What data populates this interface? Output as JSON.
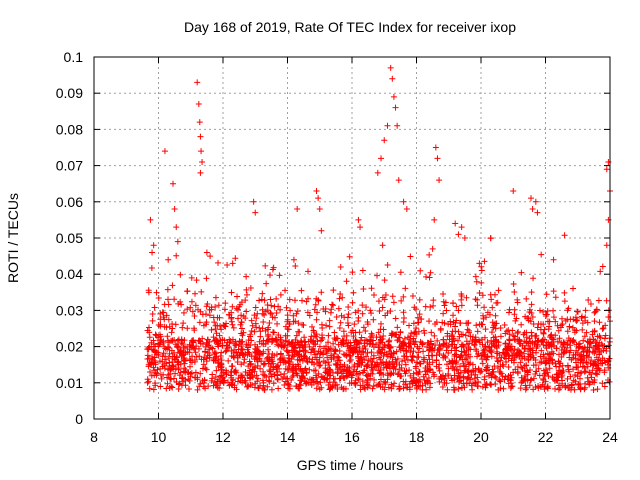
{
  "chart_data": {
    "type": "scatter",
    "title": "Day 168 of 2019, Rate Of TEC Index for receiver ixop",
    "xlabel": "GPS time / hours",
    "ylabel": "ROTI / TECUs",
    "xlim": [
      8,
      24
    ],
    "ylim": [
      0,
      0.1
    ],
    "xticks": [
      "8",
      "10",
      "12",
      "14",
      "16",
      "18",
      "20",
      "22",
      "24"
    ],
    "yticks": [
      "0",
      "0.01",
      "0.02",
      "0.03",
      "0.04",
      "0.05",
      "0.06",
      "0.07",
      "0.08",
      "0.09",
      "0.1"
    ],
    "grid": true,
    "marker": "+",
    "series": [
      {
        "name": "ROTI",
        "color": "#ff0000",
        "data_range_x": [
          9.65,
          24.0
        ],
        "points": [
          [
            9.75,
            0.055
          ],
          [
            9.8,
            0.046
          ],
          [
            9.85,
            0.048
          ],
          [
            10.2,
            0.074
          ],
          [
            10.45,
            0.065
          ],
          [
            10.5,
            0.058
          ],
          [
            10.55,
            0.053
          ],
          [
            10.6,
            0.049
          ],
          [
            11.2,
            0.093
          ],
          [
            11.25,
            0.087
          ],
          [
            11.28,
            0.082
          ],
          [
            11.3,
            0.078
          ],
          [
            11.32,
            0.074
          ],
          [
            11.35,
            0.071
          ],
          [
            11.3,
            0.068
          ],
          [
            11.5,
            0.046
          ],
          [
            11.6,
            0.045
          ],
          [
            12.95,
            0.06
          ],
          [
            13.0,
            0.057
          ],
          [
            14.3,
            0.058
          ],
          [
            14.9,
            0.063
          ],
          [
            14.95,
            0.061
          ],
          [
            15.0,
            0.058
          ],
          [
            15.05,
            0.052
          ],
          [
            16.2,
            0.055
          ],
          [
            16.25,
            0.053
          ],
          [
            16.8,
            0.068
          ],
          [
            16.9,
            0.072
          ],
          [
            17.0,
            0.077
          ],
          [
            17.1,
            0.081
          ],
          [
            17.2,
            0.097
          ],
          [
            17.25,
            0.094
          ],
          [
            17.3,
            0.089
          ],
          [
            17.35,
            0.086
          ],
          [
            17.4,
            0.081
          ],
          [
            17.45,
            0.066
          ],
          [
            17.6,
            0.06
          ],
          [
            17.7,
            0.058
          ],
          [
            18.6,
            0.075
          ],
          [
            18.65,
            0.072
          ],
          [
            18.7,
            0.066
          ],
          [
            18.55,
            0.055
          ],
          [
            19.2,
            0.054
          ],
          [
            19.3,
            0.051
          ],
          [
            19.4,
            0.053
          ],
          [
            19.5,
            0.05
          ],
          [
            20.3,
            0.05
          ],
          [
            21.0,
            0.063
          ],
          [
            21.55,
            0.061
          ],
          [
            21.6,
            0.058
          ],
          [
            21.7,
            0.06
          ],
          [
            21.75,
            0.057
          ],
          [
            23.9,
            0.069
          ],
          [
            23.95,
            0.071
          ],
          [
            24.0,
            0.063
          ],
          [
            23.95,
            0.055
          ],
          [
            23.9,
            0.048
          ],
          [
            16.95,
            0.048
          ],
          [
            18.5,
            0.047
          ],
          [
            10.3,
            0.044
          ],
          [
            14.2,
            0.044
          ],
          [
            19.95,
            0.043
          ],
          [
            22.25,
            0.044
          ],
          [
            15.65,
            0.042
          ],
          [
            12.3,
            0.043
          ]
        ]
      }
    ]
  }
}
